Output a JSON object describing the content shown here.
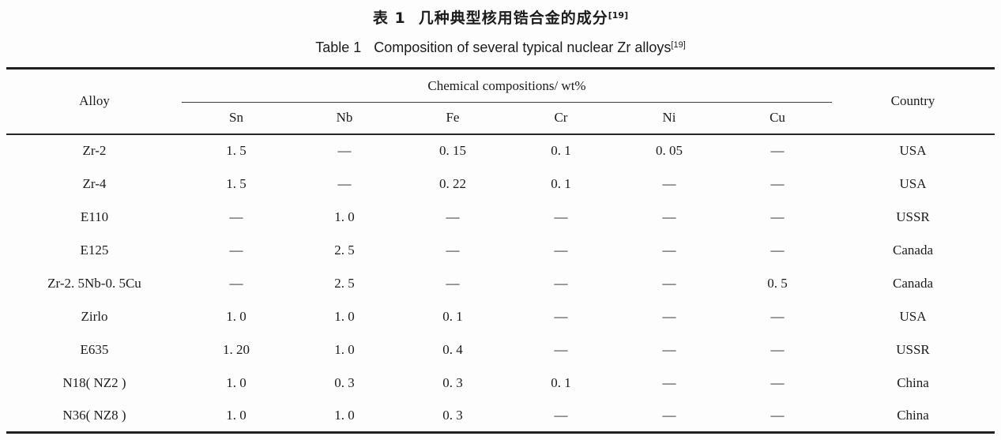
{
  "caption": {
    "zh_label": "表 1",
    "zh_title": "几种典型核用锆合金的成分",
    "zh_ref": "[19]",
    "en_label": "Table 1",
    "en_title": "Composition of several typical nuclear Zr alloys",
    "en_ref": "[19]"
  },
  "table": {
    "col_alloy": "Alloy",
    "col_group": "Chemical compositions/ wt%",
    "col_country": "Country",
    "subcolumns": [
      "Sn",
      "Nb",
      "Fe",
      "Cr",
      "Ni",
      "Cu"
    ],
    "rows": [
      {
        "alloy": "Zr-2",
        "values": [
          "1. 5",
          "—",
          "0. 15",
          "0. 1",
          "0. 05",
          "—"
        ],
        "country": "USA"
      },
      {
        "alloy": "Zr-4",
        "values": [
          "1. 5",
          "—",
          "0. 22",
          "0. 1",
          "—",
          "—"
        ],
        "country": "USA"
      },
      {
        "alloy": "E110",
        "values": [
          "—",
          "1. 0",
          "—",
          "—",
          "—",
          "—"
        ],
        "country": "USSR"
      },
      {
        "alloy": "E125",
        "values": [
          "—",
          "2. 5",
          "—",
          "—",
          "—",
          "—"
        ],
        "country": "Canada"
      },
      {
        "alloy": "Zr-2. 5Nb-0. 5Cu",
        "values": [
          "—",
          "2. 5",
          "—",
          "—",
          "—",
          "0. 5"
        ],
        "country": "Canada"
      },
      {
        "alloy": "Zirlo",
        "values": [
          "1. 0",
          "1. 0",
          "0. 1",
          "—",
          "—",
          "—"
        ],
        "country": "USA"
      },
      {
        "alloy": "E635",
        "values": [
          "1. 20",
          "1. 0",
          "0. 4",
          "—",
          "—",
          "—"
        ],
        "country": "USSR"
      },
      {
        "alloy": "N18( NZ2 )",
        "values": [
          "1. 0",
          "0. 3",
          "0. 3",
          "0. 1",
          "—",
          "—"
        ],
        "country": "China"
      },
      {
        "alloy": "N36( NZ8 )",
        "values": [
          "1. 0",
          "1. 0",
          "0. 3",
          "—",
          "—",
          "—"
        ],
        "country": "China"
      }
    ]
  },
  "colors": {
    "text": "#1c1c1c",
    "rule": "#1f1f1f",
    "background": "#fdfdfd"
  }
}
